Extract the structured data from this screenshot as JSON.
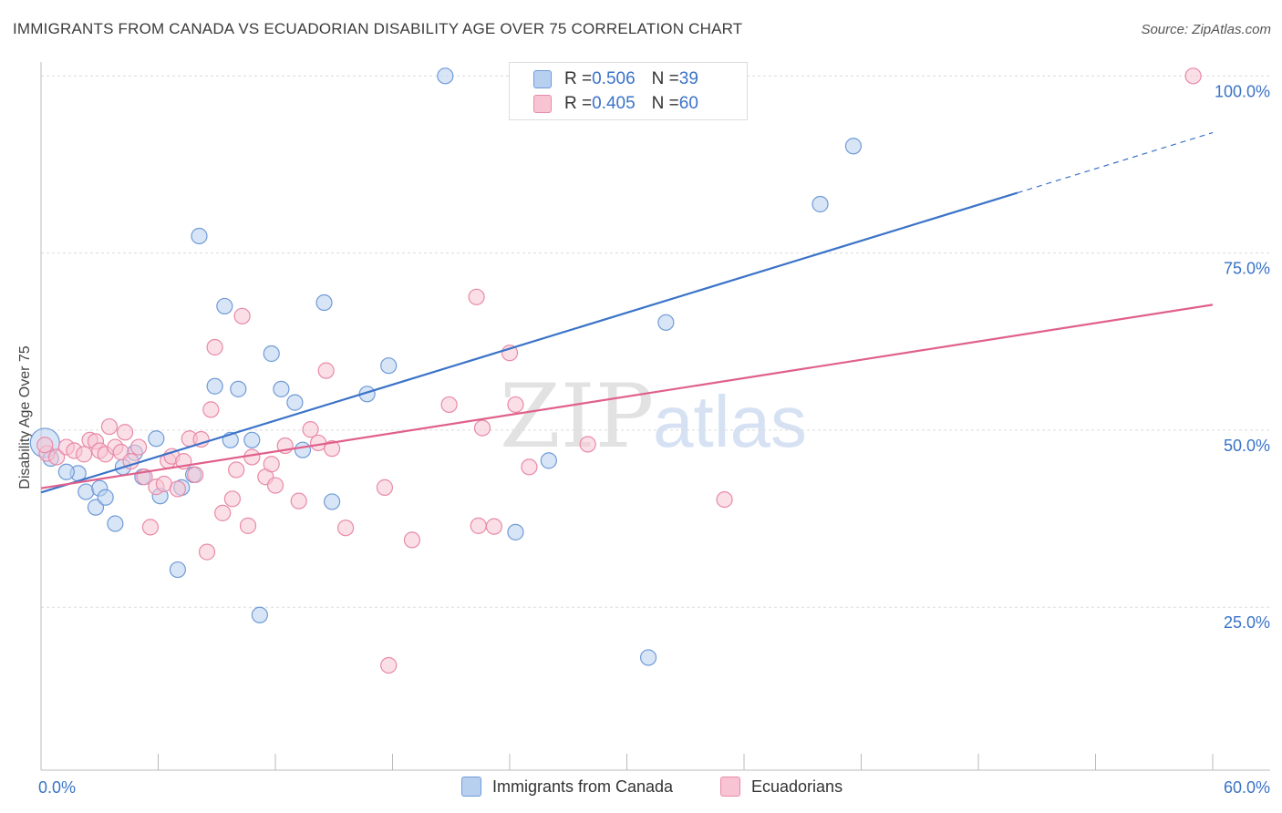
{
  "title": "IMMIGRANTS FROM CANADA VS ECUADORIAN DISABILITY AGE OVER 75 CORRELATION CHART",
  "source": "Source: ZipAtlas.com",
  "watermark": {
    "zip": "ZIP",
    "atlas": "atlas"
  },
  "colors": {
    "canada_fill": "#b8d0f0",
    "canada_stroke": "#6f9bd6",
    "canada_line": "#3a73c8",
    "ecuador_fill": "#f8c4d4",
    "ecuador_stroke": "#e88aa8",
    "ecuador_line": "#e0608a",
    "tick_label": "#3a73c8"
  },
  "legend": {
    "rows": [
      {
        "r_label": "R = ",
        "r_value": "0.506",
        "n_label": "N = ",
        "n_value": "39"
      },
      {
        "r_label": "R = ",
        "r_value": "0.405",
        "n_label": "N = ",
        "n_value": "60"
      }
    ]
  },
  "bottom_legend": [
    "Immigrants from Canada",
    "Ecuadorians"
  ],
  "chart_data": {
    "type": "scatter",
    "title": "IMMIGRANTS FROM CANADA VS ECUADORIAN DISABILITY AGE OVER 75 CORRELATION CHART",
    "xlabel": "",
    "ylabel": "Disability Age Over 75",
    "xlim": [
      0,
      60
    ],
    "ylim": [
      2,
      103
    ],
    "x_tick_labels": [
      "0.0%",
      "60.0%"
    ],
    "y_ticks": [
      25,
      50,
      75,
      100
    ],
    "y_tick_labels": [
      "25.0%",
      "50.0%",
      "75.0%",
      "100.0%"
    ],
    "grid": "horizontal-dashed",
    "legend_position": "top-center",
    "series": [
      {
        "name": "Immigrants from Canada",
        "points": [
          [
            0.2,
            48.2
          ],
          [
            1.9,
            43.9
          ],
          [
            1.3,
            44.1
          ],
          [
            2.3,
            41.3
          ],
          [
            2.8,
            39.1
          ],
          [
            3.0,
            41.8
          ],
          [
            3.3,
            40.5
          ],
          [
            3.8,
            36.8
          ],
          [
            4.2,
            44.8
          ],
          [
            4.8,
            46.8
          ],
          [
            5.2,
            43.4
          ],
          [
            5.9,
            48.8
          ],
          [
            6.1,
            40.7
          ],
          [
            7.2,
            41.9
          ],
          [
            7.8,
            43.7
          ],
          [
            8.1,
            77.4
          ],
          [
            8.9,
            56.2
          ],
          [
            9.4,
            67.5
          ],
          [
            9.7,
            48.6
          ],
          [
            10.1,
            55.8
          ],
          [
            10.8,
            48.6
          ],
          [
            11.2,
            23.9
          ],
          [
            11.8,
            60.8
          ],
          [
            12.3,
            55.8
          ],
          [
            13.0,
            53.9
          ],
          [
            13.4,
            47.2
          ],
          [
            14.5,
            68.0
          ],
          [
            14.9,
            39.9
          ],
          [
            16.7,
            55.1
          ],
          [
            17.8,
            59.1
          ],
          [
            20.7,
            100.0
          ],
          [
            24.3,
            35.6
          ],
          [
            26.0,
            45.7
          ],
          [
            31.1,
            17.9
          ],
          [
            32.0,
            65.2
          ],
          [
            39.9,
            81.9
          ],
          [
            41.6,
            90.1
          ],
          [
            7.0,
            30.3
          ],
          [
            0.5,
            46.0
          ]
        ],
        "trend": {
          "x0": 0,
          "y0": 41.2,
          "x1": 50,
          "y1": 83.5,
          "dash_to_x": 60,
          "dash_to_y": 92.0
        }
      },
      {
        "name": "Ecuadorians",
        "points": [
          [
            0.3,
            46.7
          ],
          [
            0.8,
            46.2
          ],
          [
            1.3,
            47.6
          ],
          [
            1.7,
            47.1
          ],
          [
            2.2,
            46.6
          ],
          [
            2.5,
            48.6
          ],
          [
            2.8,
            48.4
          ],
          [
            3.0,
            47.1
          ],
          [
            3.3,
            46.6
          ],
          [
            3.5,
            50.5
          ],
          [
            3.8,
            47.6
          ],
          [
            4.1,
            46.9
          ],
          [
            4.3,
            49.7
          ],
          [
            4.6,
            45.6
          ],
          [
            5.0,
            47.6
          ],
          [
            5.3,
            43.4
          ],
          [
            5.6,
            36.3
          ],
          [
            5.9,
            42.0
          ],
          [
            6.3,
            42.4
          ],
          [
            6.5,
            45.7
          ],
          [
            6.7,
            46.3
          ],
          [
            7.0,
            41.7
          ],
          [
            7.3,
            45.6
          ],
          [
            7.6,
            48.8
          ],
          [
            7.9,
            43.7
          ],
          [
            8.2,
            48.7
          ],
          [
            8.5,
            32.8
          ],
          [
            8.7,
            52.9
          ],
          [
            8.9,
            61.7
          ],
          [
            9.3,
            38.3
          ],
          [
            9.8,
            40.3
          ],
          [
            10.0,
            44.4
          ],
          [
            10.3,
            66.1
          ],
          [
            10.6,
            36.5
          ],
          [
            10.8,
            46.2
          ],
          [
            11.5,
            43.4
          ],
          [
            11.8,
            45.2
          ],
          [
            12.0,
            42.2
          ],
          [
            12.5,
            47.8
          ],
          [
            13.2,
            40.0
          ],
          [
            13.8,
            50.1
          ],
          [
            14.2,
            48.2
          ],
          [
            14.6,
            58.4
          ],
          [
            14.9,
            47.4
          ],
          [
            15.6,
            36.2
          ],
          [
            17.6,
            41.9
          ],
          [
            17.8,
            16.8
          ],
          [
            19.0,
            34.5
          ],
          [
            20.9,
            53.6
          ],
          [
            22.3,
            68.8
          ],
          [
            22.4,
            36.5
          ],
          [
            22.6,
            50.3
          ],
          [
            23.2,
            36.4
          ],
          [
            24.3,
            53.6
          ],
          [
            24.0,
            60.9
          ],
          [
            25.0,
            44.8
          ],
          [
            28.0,
            48.0
          ],
          [
            35.0,
            40.2
          ],
          [
            59.0,
            100.0
          ],
          [
            0.2,
            47.9
          ]
        ],
        "trend": {
          "x0": 0,
          "y0": 41.8,
          "x1": 60,
          "y1": 67.7
        }
      }
    ]
  }
}
